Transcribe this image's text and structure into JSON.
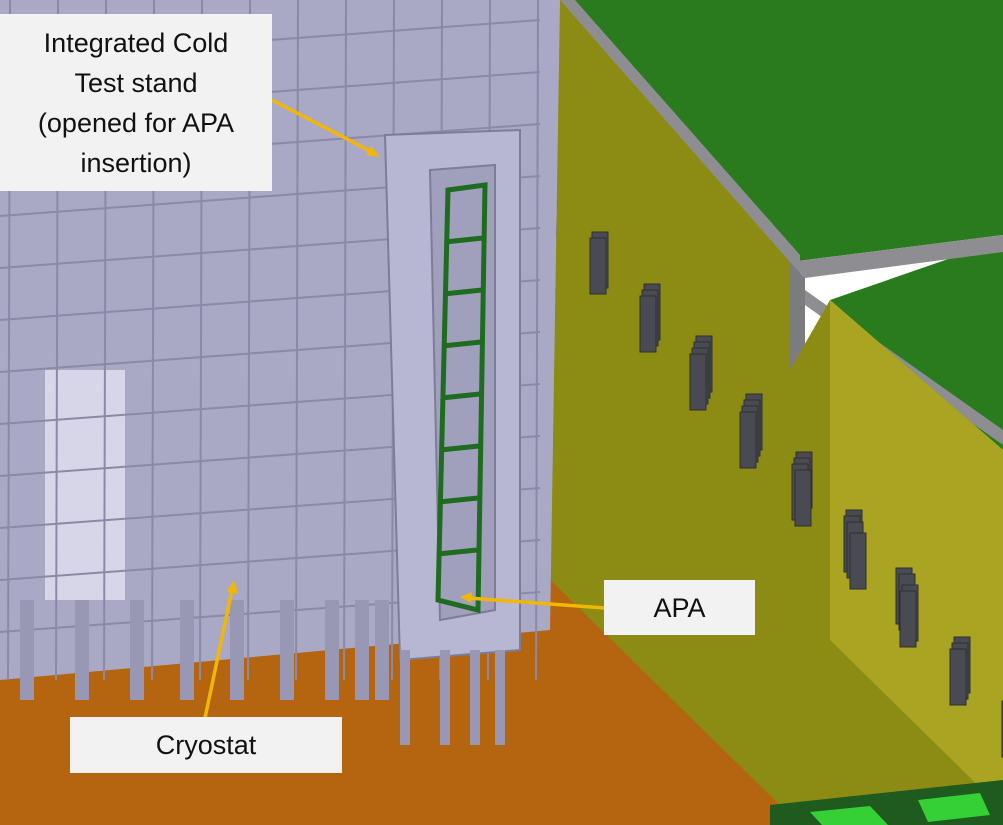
{
  "labels": {
    "test_stand": "Integrated Cold\nTest stand\n(opened for APA\ninsertion)",
    "apa": "APA",
    "cryostat": "Cryostat"
  },
  "colors": {
    "floor": "#b5650f",
    "wall_olive": "#8c8c14",
    "wall_right": "#a9a422",
    "roof_green": "#2a7a1e",
    "wall_gray": "#8e8e92",
    "steel": "#a9a9c6",
    "steel_dark": "#8a8aa6",
    "steel_light": "#c8c8df",
    "apa_green": "#1f6b1f",
    "arrow": "#f2b705",
    "window_dark": "#4a4a52",
    "bright_green": "#35d035"
  }
}
